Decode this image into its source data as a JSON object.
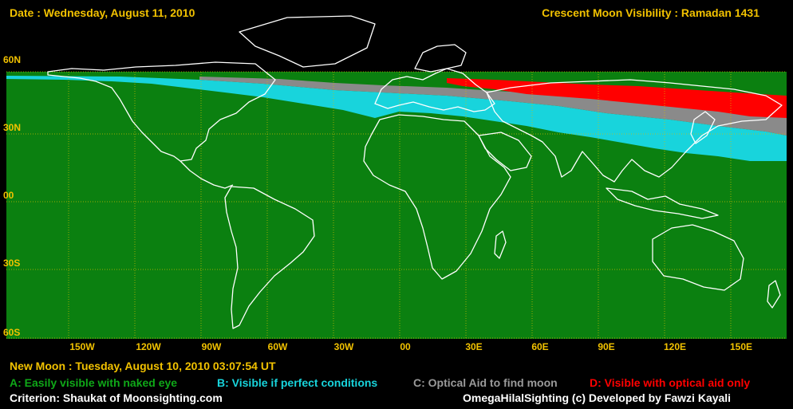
{
  "header": {
    "date": "Date : Wednesday, August 11, 2010",
    "title": "Crescent Moon Visibility : Ramadan  1431"
  },
  "lat_labels": [
    "60N",
    "30N",
    "00",
    "30S",
    "60S"
  ],
  "lon_labels": [
    "150W",
    "120W",
    "90W",
    "60W",
    "30W",
    "00",
    "30E",
    "60E",
    "90E",
    "120E",
    "150E"
  ],
  "footer": {
    "new_moon": "New Moon : Tuesday, August 10, 2010  03:07:54  UT",
    "legend": {
      "a": "A: Easily visible with naked eye",
      "b": "B: Visible if perfect conditions",
      "c": "C: Optical Aid to find moon",
      "d": "D: Visible with optical aid only"
    },
    "criterion": "Criterion: Shaukat of Moonsighting.com",
    "credit": "OmegaHilalSighting  (c)  Developed by Fawzi Kayali"
  },
  "colors": {
    "zone_a": "#0b8010",
    "zone_b": "#18d4dc",
    "zone_c": "#8a8a8a",
    "zone_d": "#ff0000",
    "label": "#f2c200",
    "coast": "#ffffff"
  }
}
